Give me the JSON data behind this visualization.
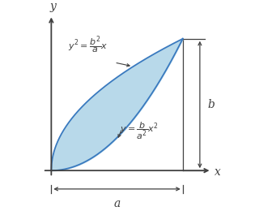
{
  "bg_color": "#ffffff",
  "shaded_color": "#b8d9ea",
  "shaded_edge_color": "#3a7abf",
  "axis_color": "#404040",
  "text_color": "#404040",
  "a_val": 1.0,
  "b_val": 1.0,
  "label_x": "x",
  "label_y": "y",
  "label_a": "a",
  "label_b": "b",
  "figsize": [
    3.2,
    2.6
  ],
  "dpi": 100
}
